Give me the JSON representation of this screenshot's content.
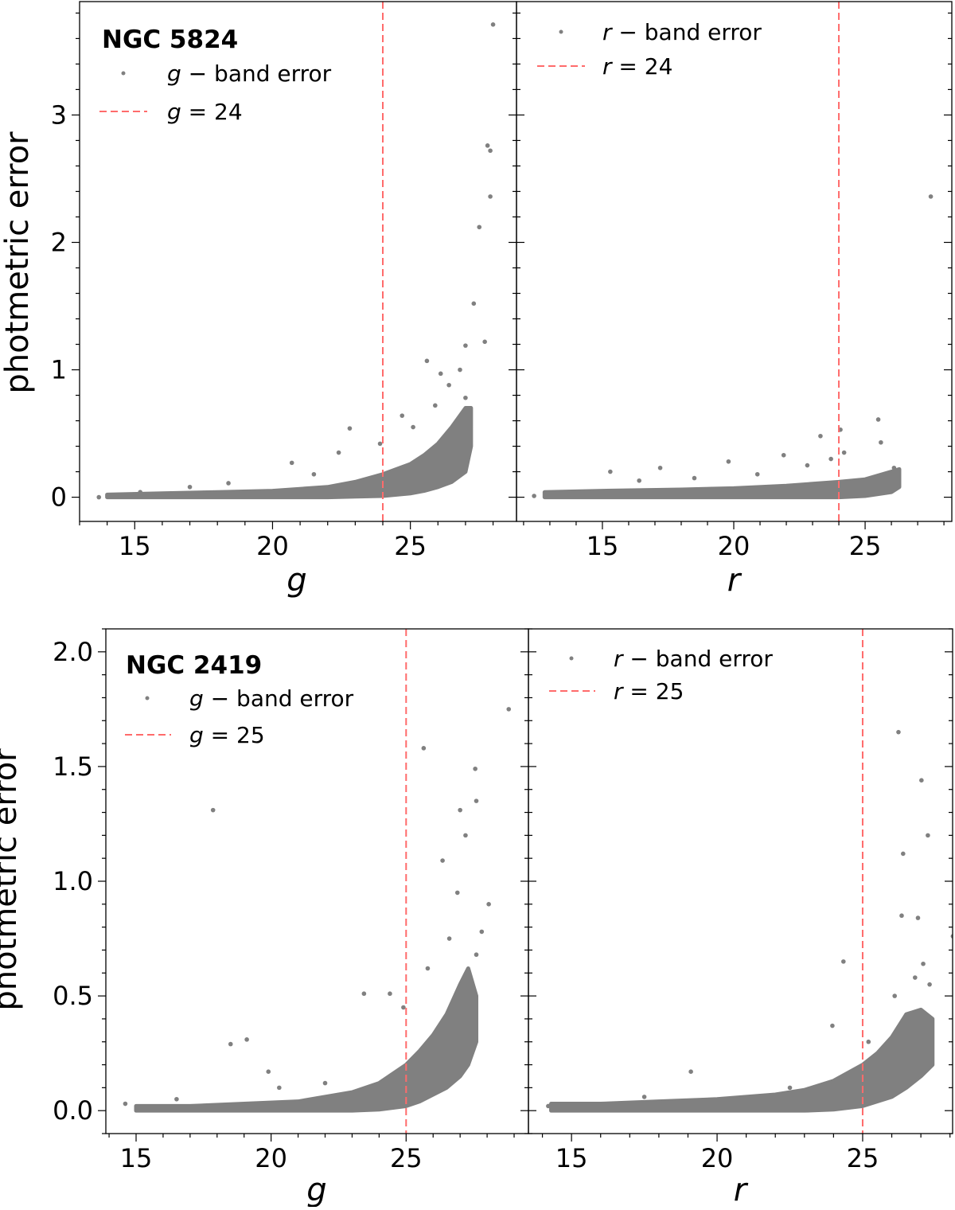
{
  "chart_data": [
    {
      "type": "scatter",
      "title": "NGC 5824",
      "xlabel": "g",
      "ylabel": "photmetric error",
      "xlim": [
        13.0,
        28.85
      ],
      "ylim": [
        -0.19,
        3.89
      ],
      "xticks": [
        15,
        20,
        25
      ],
      "yticks": [
        0,
        1,
        2,
        3
      ],
      "ytick_labels": [
        "0",
        "1",
        "2",
        "3"
      ],
      "series_color": "#808080",
      "cut_color": "#ff6b6b",
      "legend": {
        "points_label_var": "g",
        "points_label_text": " − band error",
        "cut_label_var": "g",
        "cut_label_text": " = 24"
      },
      "cut_x": 24,
      "dense_band": {
        "x": [
          14,
          16,
          18,
          20,
          22,
          23,
          24,
          25,
          25.5,
          26,
          26.5,
          27,
          27.2
        ],
        "lower": [
          0,
          0,
          0,
          0,
          0,
          0.005,
          0.01,
          0.03,
          0.05,
          0.08,
          0.12,
          0.2,
          0.4
        ],
        "upper": [
          0.02,
          0.03,
          0.04,
          0.05,
          0.08,
          0.12,
          0.18,
          0.26,
          0.33,
          0.42,
          0.55,
          0.7,
          0.7
        ]
      },
      "points": [
        [
          28.0,
          3.71
        ],
        [
          27.8,
          2.76
        ],
        [
          27.9,
          2.72
        ],
        [
          27.9,
          2.36
        ],
        [
          27.5,
          2.12
        ],
        [
          27.3,
          1.52
        ],
        [
          27.7,
          1.22
        ],
        [
          27.0,
          1.19
        ],
        [
          25.6,
          1.07
        ],
        [
          24.7,
          0.64
        ],
        [
          22.8,
          0.54
        ],
        [
          20.7,
          0.27
        ],
        [
          18.4,
          0.11
        ],
        [
          25.1,
          0.55
        ],
        [
          26.1,
          0.97
        ],
        [
          27.0,
          0.78
        ],
        [
          27.1,
          0.66
        ],
        [
          13.7,
          0.0
        ],
        [
          26.4,
          0.88
        ],
        [
          26.8,
          1.0
        ],
        [
          25.9,
          0.72
        ],
        [
          23.9,
          0.42
        ],
        [
          22.4,
          0.35
        ],
        [
          21.5,
          0.18
        ],
        [
          17.0,
          0.08
        ],
        [
          15.2,
          0.04
        ]
      ]
    },
    {
      "type": "scatter",
      "title": "",
      "xlabel": "r",
      "ylabel": "",
      "xlim": [
        11.73,
        28.3
      ],
      "ylim": [
        -0.19,
        3.89
      ],
      "xticks": [
        15,
        20,
        25
      ],
      "yticks": [
        0,
        1,
        2,
        3
      ],
      "ytick_labels": [],
      "series_color": "#808080",
      "cut_color": "#ff6b6b",
      "legend": {
        "points_label_var": "r",
        "points_label_text": " − band error",
        "cut_label_var": "r",
        "cut_label_text": " = 24"
      },
      "cut_x": 24,
      "dense_band": {
        "x": [
          12.8,
          15,
          18,
          20,
          22,
          24,
          25,
          26,
          26.3
        ],
        "lower": [
          0,
          0,
          0,
          0,
          0,
          0,
          0.01,
          0.04,
          0.08
        ],
        "upper": [
          0.04,
          0.05,
          0.06,
          0.07,
          0.09,
          0.12,
          0.14,
          0.2,
          0.22
        ]
      },
      "points": [
        [
          27.5,
          2.36
        ],
        [
          25.5,
          0.61
        ],
        [
          24.06,
          0.53
        ],
        [
          23.3,
          0.48
        ],
        [
          25.6,
          0.43
        ],
        [
          19.8,
          0.28
        ],
        [
          17.2,
          0.23
        ],
        [
          15.3,
          0.2
        ],
        [
          12.4,
          0.01
        ],
        [
          26.1,
          0.23
        ],
        [
          21.9,
          0.33
        ],
        [
          24.2,
          0.35
        ],
        [
          23.7,
          0.3
        ],
        [
          22.8,
          0.25
        ],
        [
          18.5,
          0.15
        ],
        [
          16.4,
          0.13
        ],
        [
          20.9,
          0.18
        ]
      ]
    },
    {
      "type": "scatter",
      "title": "NGC 2419",
      "xlabel": "g",
      "ylabel": "photmetric error",
      "xlim": [
        13.88,
        29.53
      ],
      "ylim": [
        -0.1,
        2.1
      ],
      "xticks": [
        15,
        20,
        25
      ],
      "yticks": [
        0,
        0.5,
        1.0,
        1.5,
        2.0
      ],
      "ytick_labels": [
        "0.0",
        "0.5",
        "1.0",
        "1.5",
        "2.0"
      ],
      "series_color": "#808080",
      "cut_color": "#ff6b6b",
      "legend": {
        "points_label_var": "g",
        "points_label_text": " − band error",
        "cut_label_var": "g",
        "cut_label_text": " = 25"
      },
      "cut_x": 25,
      "dense_band": {
        "x": [
          15,
          17,
          19,
          21,
          23,
          24,
          25,
          25.5,
          26,
          26.5,
          27,
          27.3,
          27.6
        ],
        "lower": [
          0,
          0,
          0,
          0,
          0,
          0.005,
          0.02,
          0.04,
          0.07,
          0.1,
          0.15,
          0.2,
          0.3
        ],
        "upper": [
          0.02,
          0.02,
          0.03,
          0.04,
          0.08,
          0.12,
          0.2,
          0.26,
          0.33,
          0.42,
          0.55,
          0.62,
          0.5
        ]
      },
      "points": [
        [
          28.8,
          1.75
        ],
        [
          25.65,
          1.58
        ],
        [
          27.56,
          1.49
        ],
        [
          17.85,
          1.31
        ],
        [
          27.6,
          1.35
        ],
        [
          27.0,
          1.31
        ],
        [
          26.35,
          1.09
        ],
        [
          28.06,
          0.9
        ],
        [
          23.44,
          0.51
        ],
        [
          19.1,
          0.31
        ],
        [
          18.5,
          0.29
        ],
        [
          19.9,
          0.17
        ],
        [
          24.4,
          0.51
        ],
        [
          27.6,
          0.68
        ],
        [
          14.6,
          0.03
        ],
        [
          27.2,
          1.2
        ],
        [
          26.9,
          0.95
        ],
        [
          27.8,
          0.78
        ],
        [
          26.6,
          0.75
        ],
        [
          25.8,
          0.62
        ],
        [
          24.9,
          0.45
        ],
        [
          22.0,
          0.12
        ],
        [
          20.3,
          0.1
        ],
        [
          16.5,
          0.05
        ]
      ]
    },
    {
      "type": "scatter",
      "title": "",
      "xlabel": "r",
      "ylabel": "",
      "xlim": [
        13.52,
        28.09
      ],
      "ylim": [
        -0.1,
        2.1
      ],
      "xticks": [
        15,
        20,
        25
      ],
      "yticks": [
        0,
        0.5,
        1.0,
        1.5,
        2.0
      ],
      "ytick_labels": [],
      "series_color": "#808080",
      "cut_color": "#ff6b6b",
      "legend": {
        "points_label_var": "r",
        "points_label_text": " − band error",
        "cut_label_var": "r",
        "cut_label_text": " = 25"
      },
      "cut_x": 25,
      "dense_band": {
        "x": [
          14.3,
          16,
          18,
          20,
          22,
          23,
          24,
          25,
          25.5,
          26,
          26.5,
          27,
          27.4
        ],
        "lower": [
          0,
          0,
          0,
          0,
          0,
          0,
          0.005,
          0.02,
          0.04,
          0.06,
          0.1,
          0.15,
          0.2
        ],
        "upper": [
          0.03,
          0.03,
          0.04,
          0.05,
          0.07,
          0.09,
          0.13,
          0.2,
          0.25,
          0.32,
          0.42,
          0.44,
          0.4
        ]
      },
      "points": [
        [
          26.23,
          1.65
        ],
        [
          27.02,
          1.44
        ],
        [
          27.24,
          1.2
        ],
        [
          26.39,
          1.12
        ],
        [
          28.1,
          0.76
        ],
        [
          26.34,
          0.85
        ],
        [
          26.9,
          0.84
        ],
        [
          24.34,
          0.65
        ],
        [
          23.96,
          0.37
        ],
        [
          19.1,
          0.17
        ],
        [
          27.08,
          0.64
        ],
        [
          14.2,
          0.02
        ],
        [
          27.3,
          0.55
        ],
        [
          26.8,
          0.58
        ],
        [
          26.1,
          0.5
        ],
        [
          25.2,
          0.3
        ],
        [
          22.5,
          0.1
        ],
        [
          17.5,
          0.06
        ]
      ]
    }
  ]
}
